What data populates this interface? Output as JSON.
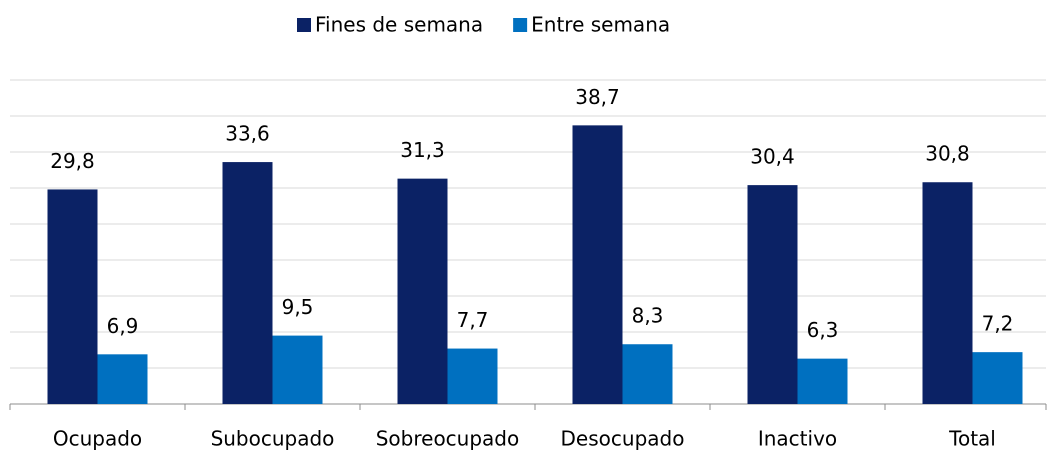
{
  "chart_data": {
    "type": "bar",
    "categories": [
      "Ocupado",
      "Subocupado",
      "Sobreocupado",
      "Desocupado",
      "Inactivo",
      "Total"
    ],
    "series": [
      {
        "name": "Fines de semana",
        "color": "#0b2265",
        "values": [
          29.8,
          33.6,
          31.3,
          38.7,
          30.4,
          30.8
        ],
        "value_labels": [
          "29,8",
          "33,6",
          "31,3",
          "38,7",
          "30,4",
          "30,8"
        ]
      },
      {
        "name": "Entre semana",
        "color": "#0070c0",
        "values": [
          6.9,
          9.5,
          7.7,
          8.3,
          6.3,
          7.2
        ],
        "value_labels": [
          "6,9",
          "9,5",
          "7,7",
          "8,3",
          "6,3",
          "7,2"
        ]
      }
    ],
    "ylim": [
      0,
      45
    ],
    "yticks": [
      0,
      5,
      10,
      15,
      20,
      25,
      30,
      35,
      40,
      45
    ],
    "grid": true,
    "legend": "top"
  }
}
